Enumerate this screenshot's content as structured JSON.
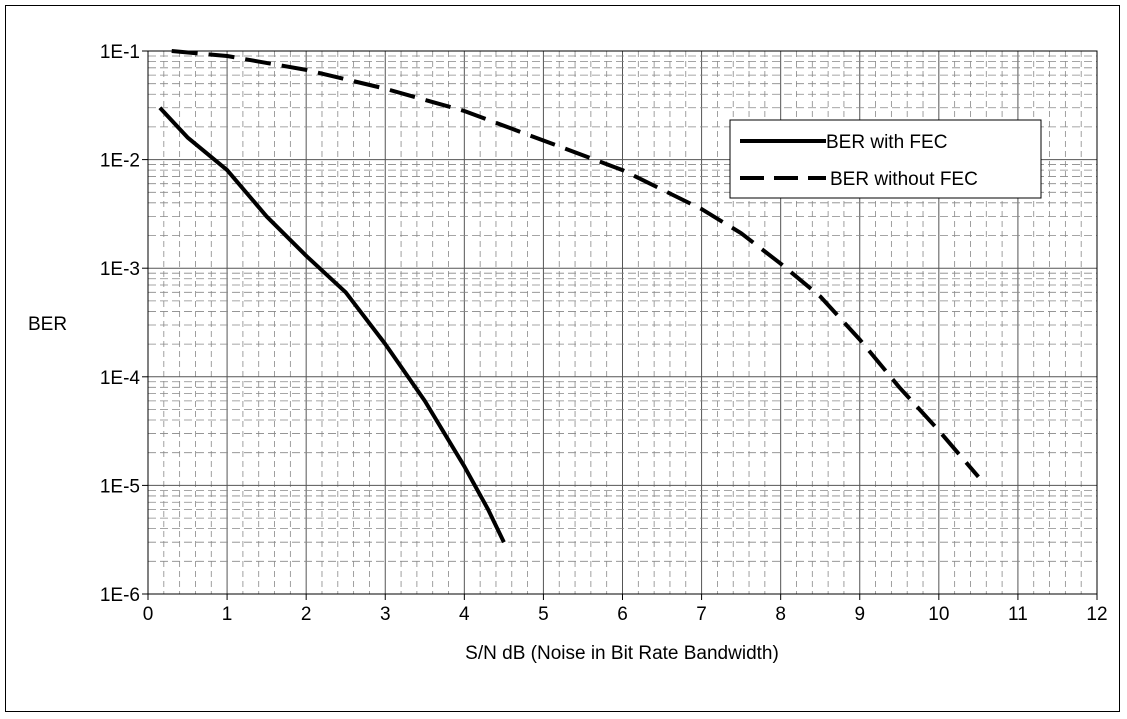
{
  "chart_data": {
    "type": "line",
    "title": "",
    "xlabel": "S/N dB (Noise in Bit Rate Bandwidth)",
    "ylabel": "BER",
    "xlim": [
      0,
      12
    ],
    "ylim": [
      1e-06,
      0.1
    ],
    "y_scale": "log",
    "x_ticks": [
      "0",
      "1",
      "2",
      "3",
      "4",
      "5",
      "6",
      "7",
      "8",
      "9",
      "10",
      "11",
      "12"
    ],
    "y_ticks": [
      {
        "value": 0.1,
        "label": "1E-1"
      },
      {
        "value": 0.01,
        "label": "1E-2"
      },
      {
        "value": 0.001,
        "label": "1E-3"
      },
      {
        "value": 0.0001,
        "label": "1E-4"
      },
      {
        "value": 1e-05,
        "label": "1E-5"
      },
      {
        "value": 1e-06,
        "label": "1E-6"
      }
    ],
    "grid": true,
    "legend_position": "top-right",
    "series": [
      {
        "name": "BER with FEC",
        "style": "solid",
        "color": "#000000",
        "x": [
          0.15,
          0.5,
          1.0,
          1.5,
          2.0,
          2.5,
          3.0,
          3.5,
          4.0,
          4.3,
          4.5
        ],
        "y": [
          0.03,
          0.016,
          0.008,
          0.003,
          0.0013,
          0.0006,
          0.0002,
          6e-05,
          1.5e-05,
          6e-06,
          3e-06
        ]
      },
      {
        "name": "BER without FEC",
        "style": "dashed",
        "color": "#000000",
        "x": [
          0.3,
          1.0,
          2.0,
          3.0,
          4.0,
          5.0,
          6.0,
          7.0,
          7.5,
          8.0,
          8.5,
          9.0,
          9.5,
          10.0,
          10.5
        ],
        "y": [
          0.1,
          0.09,
          0.067,
          0.045,
          0.028,
          0.015,
          0.008,
          0.0035,
          0.0021,
          0.0011,
          0.00055,
          0.00022,
          8e-05,
          3.2e-05,
          1.2e-05
        ]
      }
    ]
  }
}
